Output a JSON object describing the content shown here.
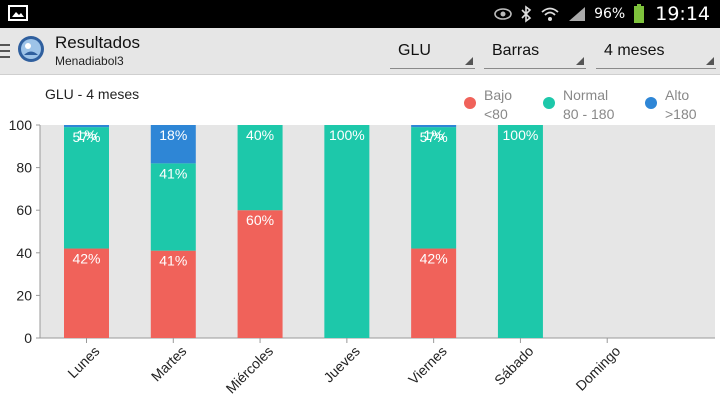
{
  "status_bar": {
    "battery_percent": "96%",
    "clock": "19:14",
    "icons": [
      "image-notification-icon",
      "eye-icon",
      "bluetooth-icon",
      "wifi-icon",
      "signal-icon",
      "battery-icon"
    ]
  },
  "app_bar": {
    "title": "Resultados",
    "subtitle": "Menadiabol3",
    "spinners": {
      "metric": "GLU",
      "chart_type": "Barras",
      "period": "4 meses"
    }
  },
  "colors": {
    "bajo": "#f0625a",
    "normal": "#1dc8aa",
    "alto": "#2e86d6",
    "plot_bg": "#e6e6e6"
  },
  "chart_data": {
    "type": "bar",
    "stacked": true,
    "title": "GLU - 4 meses",
    "categories": [
      "Lunes",
      "Martes",
      "Miércoles",
      "Jueves",
      "Viernes",
      "Sábado",
      "Domingo"
    ],
    "ylim": [
      0,
      100
    ],
    "yticks": [
      "0",
      "20",
      "40",
      "60",
      "80",
      "100"
    ],
    "legend_placement": "top-right",
    "series": [
      {
        "name": "Bajo",
        "range": "<80",
        "color": "#f0625a",
        "values": [
          42,
          41,
          60,
          0,
          42,
          0,
          0
        ],
        "labels": [
          "42%",
          "41%",
          "60%",
          "",
          "42%",
          "",
          ""
        ]
      },
      {
        "name": "Normal",
        "range": "80 - 180",
        "color": "#1dc8aa",
        "values": [
          57,
          41,
          40,
          100,
          57,
          100,
          0
        ],
        "labels": [
          "57%",
          "41%",
          "40%",
          "100%",
          "57%",
          "100%",
          ""
        ]
      },
      {
        "name": "Alto",
        "range": ">180",
        "color": "#2e86d6",
        "values": [
          1,
          18,
          0,
          0,
          1,
          0,
          0
        ],
        "labels": [
          "1%",
          "18%",
          "",
          "",
          "1%",
          "",
          ""
        ]
      }
    ]
  }
}
